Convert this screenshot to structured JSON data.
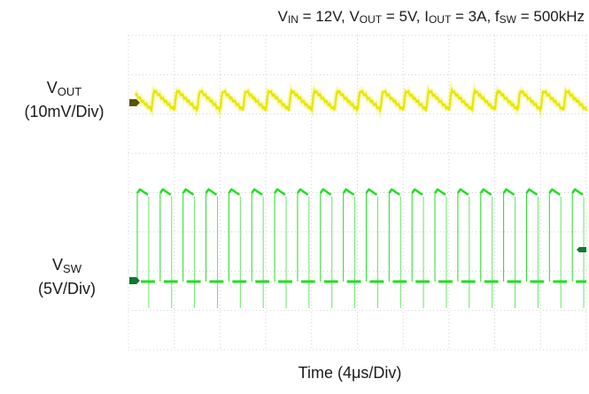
{
  "chart_data": {
    "type": "line",
    "title": {
      "vin_sym": "V",
      "vin_sub": "IN",
      "vin_val": " = 12V, ",
      "vout_sym": "V",
      "vout_sub": "OUT",
      "vout_val": " = 5V, ",
      "iout_sym": "I",
      "iout_sub": "OUT",
      "iout_val": " = 3A, ",
      "fsw_sym": "f",
      "fsw_sub": "SW",
      "fsw_val": " = 500kHz"
    },
    "xlabel": "Time (4μs/Div)",
    "x_divisions": 10,
    "grid": true,
    "series": [
      {
        "name_sym": "V",
        "name_sub": "OUT",
        "scale": "(10mV/Div)",
        "color": "#e6e600",
        "waveform": "output ripple",
        "period_us": 2,
        "peak_to_peak_mV": 10
      },
      {
        "name_sym": "V",
        "name_sub": "SW",
        "scale": "(5V/Div)",
        "color": "#22dd22",
        "waveform": "switch node",
        "period_us": 2,
        "high_V": 12,
        "low_V": 0
      }
    ],
    "colors": {
      "vout_marker": "#555500",
      "vsw_marker": "#117733",
      "grid": "#d0d0d0"
    }
  }
}
